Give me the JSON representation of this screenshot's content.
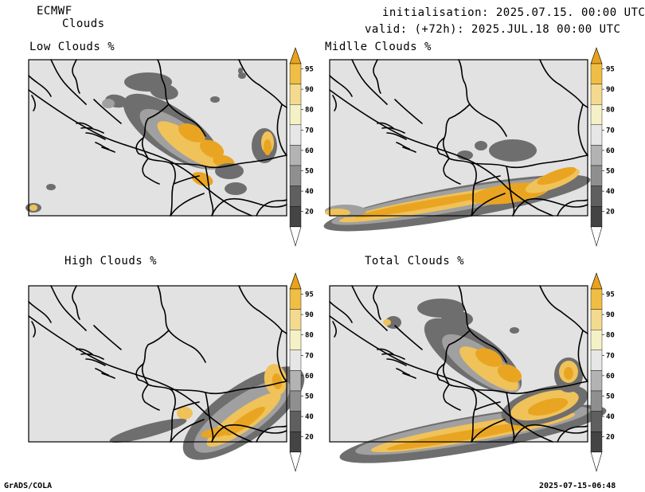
{
  "header": {
    "model": "ECMWF",
    "product": "Clouds",
    "init": "initialisation: 2025.07.15. 00:00 UTC",
    "valid": "valid: (+72h): 2025.JUL.18 00:00 UTC"
  },
  "panels": [
    {
      "title": "Low Clouds %"
    },
    {
      "title": "Midlle Clouds %"
    },
    {
      "title": "High Clouds %"
    },
    {
      "title": "Total Clouds %"
    }
  ],
  "colorbar": {
    "labels": [
      "95",
      "90",
      "80",
      "70",
      "60",
      "50",
      "40",
      "20"
    ],
    "colors": [
      "#e8a21e",
      "#f0be45",
      "#f3da8f",
      "#f5f1c6",
      "#e6e6e6",
      "#b3b3b3",
      "#8f8f8f",
      "#5f5f5f",
      "#444444",
      "#ffffff"
    ]
  },
  "map_colors": {
    "background": "#e2e2e2",
    "cloud_dark": "#6e6e6e",
    "cloud_mid": "#a0a0a0",
    "cloud_light": "#f0c25a",
    "cloud_orange": "#e9a521",
    "border": "#000000"
  },
  "footer": {
    "left": "GrADS/COLA",
    "right": "2025-07-15-06:48"
  }
}
